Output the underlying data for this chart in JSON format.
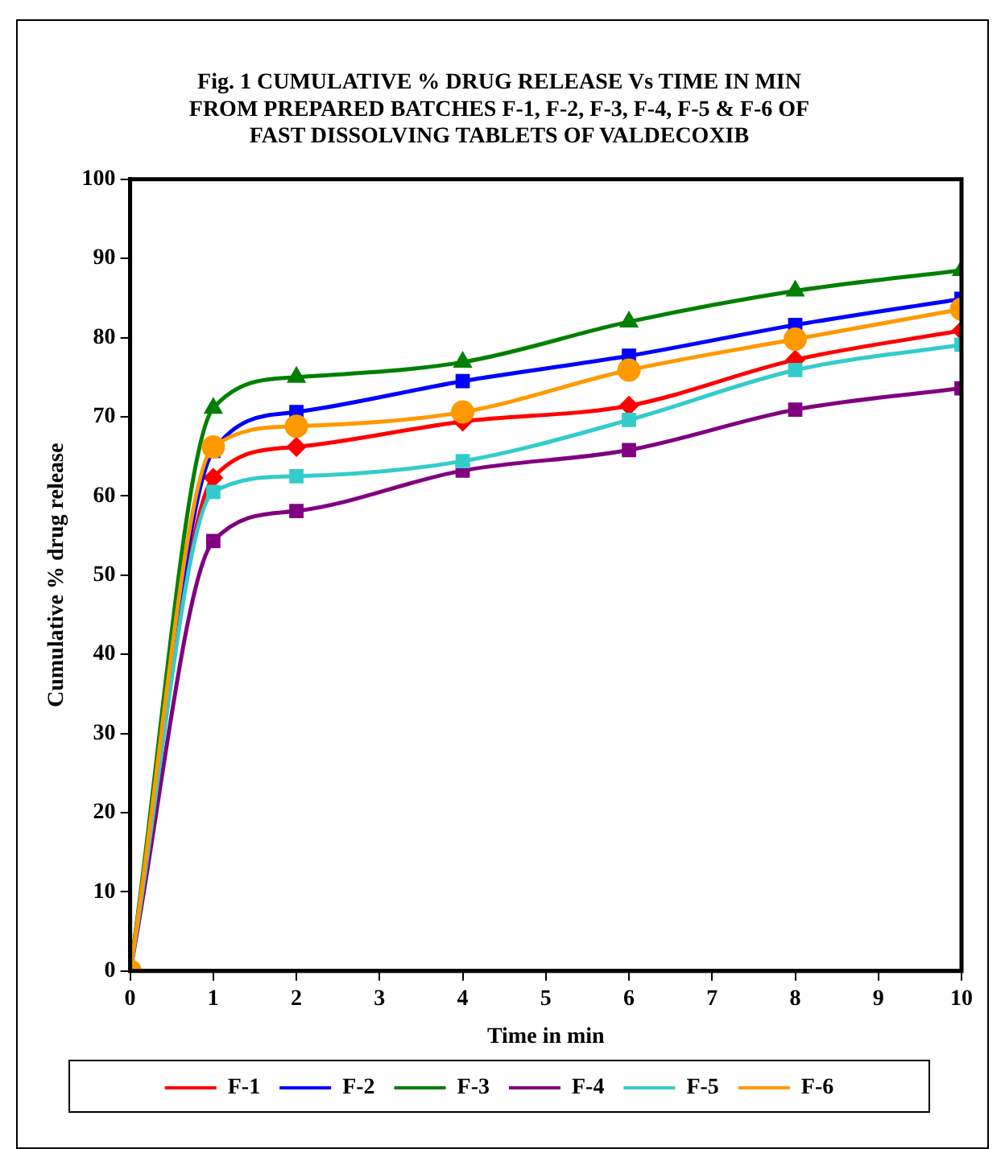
{
  "chart_data": {
    "type": "line",
    "title": "Fig. 1 CUMULATIVE % DRUG RELEASE Vs TIME IN MIN\nFROM PREPARED BATCHES F-1, F-2, F-3, F-4, F-5 & F-6 OF\nFAST DISSOLVING TABLETS OF VALDECOXIB",
    "xlabel": "Time in min",
    "ylabel": "Cumulative % drug release",
    "x": [
      0,
      1,
      2,
      4,
      6,
      8,
      10
    ],
    "series": [
      {
        "name": "F-1",
        "color": "#ff0000",
        "marker": "diamond",
        "values": [
          0,
          62.3,
          66.2,
          69.4,
          71.4,
          77.2,
          80.9
        ]
      },
      {
        "name": "F-2",
        "color": "#0000ff",
        "marker": "square",
        "values": [
          0,
          65.7,
          70.6,
          74.5,
          77.7,
          81.6,
          84.9
        ]
      },
      {
        "name": "F-3",
        "color": "#008000",
        "marker": "triangle",
        "values": [
          0,
          71.1,
          75,
          76.9,
          82,
          85.9,
          88.5
        ]
      },
      {
        "name": "F-4",
        "color": "#800080",
        "marker": "square",
        "values": [
          0,
          54.3,
          58.1,
          63.2,
          65.8,
          70.9,
          73.6
        ]
      },
      {
        "name": "F-5",
        "color": "#33cccc",
        "marker": "square",
        "values": [
          0,
          60.5,
          62.5,
          64.4,
          69.6,
          75.9,
          79.1
        ]
      },
      {
        "name": "F-6",
        "color": "#ff9900",
        "marker": "circle",
        "values": [
          0,
          66.2,
          68.8,
          70.6,
          75.9,
          79.8,
          83.6
        ]
      }
    ],
    "xlim": [
      0,
      10
    ],
    "xticks": [
      0,
      1,
      2,
      3,
      4,
      5,
      6,
      7,
      8,
      9,
      10
    ],
    "ylim": [
      0,
      100
    ],
    "yticks": [
      0,
      10,
      20,
      30,
      40,
      50,
      60,
      70,
      80,
      90,
      100
    ],
    "legend": "bottom"
  }
}
